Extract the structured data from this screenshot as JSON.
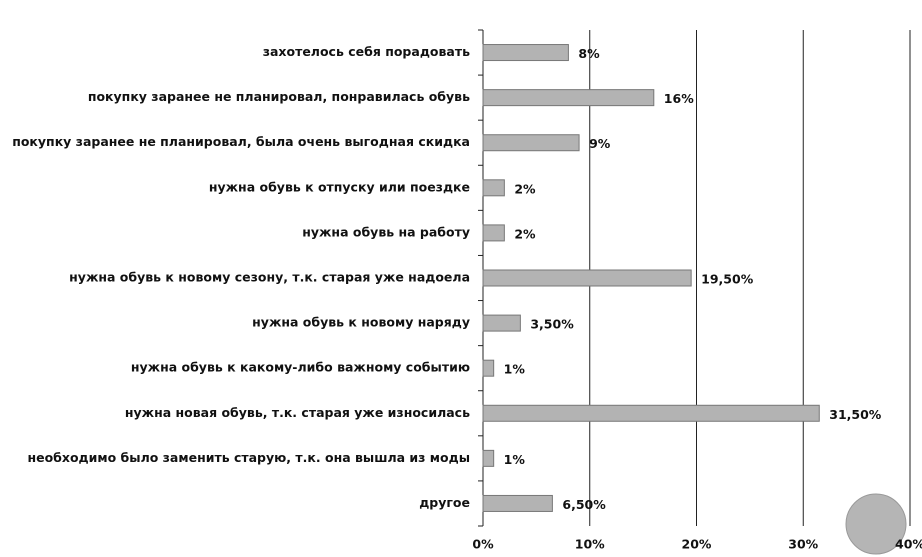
{
  "chart_data": {
    "type": "bar",
    "orientation": "horizontal",
    "categories": [
      "захотелось себя порадовать",
      "покупку заранее не планировал, понравилась обувь",
      "покупку заранее не планировал,  была очень выгодная скидка",
      "нужна обувь к отпуску или поездке",
      "нужна  обувь на работу",
      "нужна  обувь к новому сезону, т.к. старая уже надоела",
      "нужна  обувь к новому наряду",
      "нужна   обувь к какому-либо важному событию",
      "нужна   новая обувь, т.к. старая уже износилась",
      "необходимо было заменить старую, т.к. она вышла из моды",
      "другое"
    ],
    "values": [
      8,
      16,
      9,
      2,
      2,
      19.5,
      3.5,
      1,
      31.5,
      1,
      6.5
    ],
    "value_labels": [
      "8%",
      "16%",
      "9%",
      "2%",
      "2%",
      "19,50%",
      "3,50%",
      "1%",
      "31,50%",
      "1%",
      "6,50%"
    ],
    "color": "#b3b3b3",
    "xlim": [
      0,
      40
    ],
    "xticks": [
      {
        "value": 0,
        "label": "0%"
      },
      {
        "value": 10,
        "label": "10%"
      },
      {
        "value": 20,
        "label": "20%"
      },
      {
        "value": 30,
        "label": "30%"
      },
      {
        "value": 40,
        "label": "40%"
      }
    ],
    "grid": true
  }
}
